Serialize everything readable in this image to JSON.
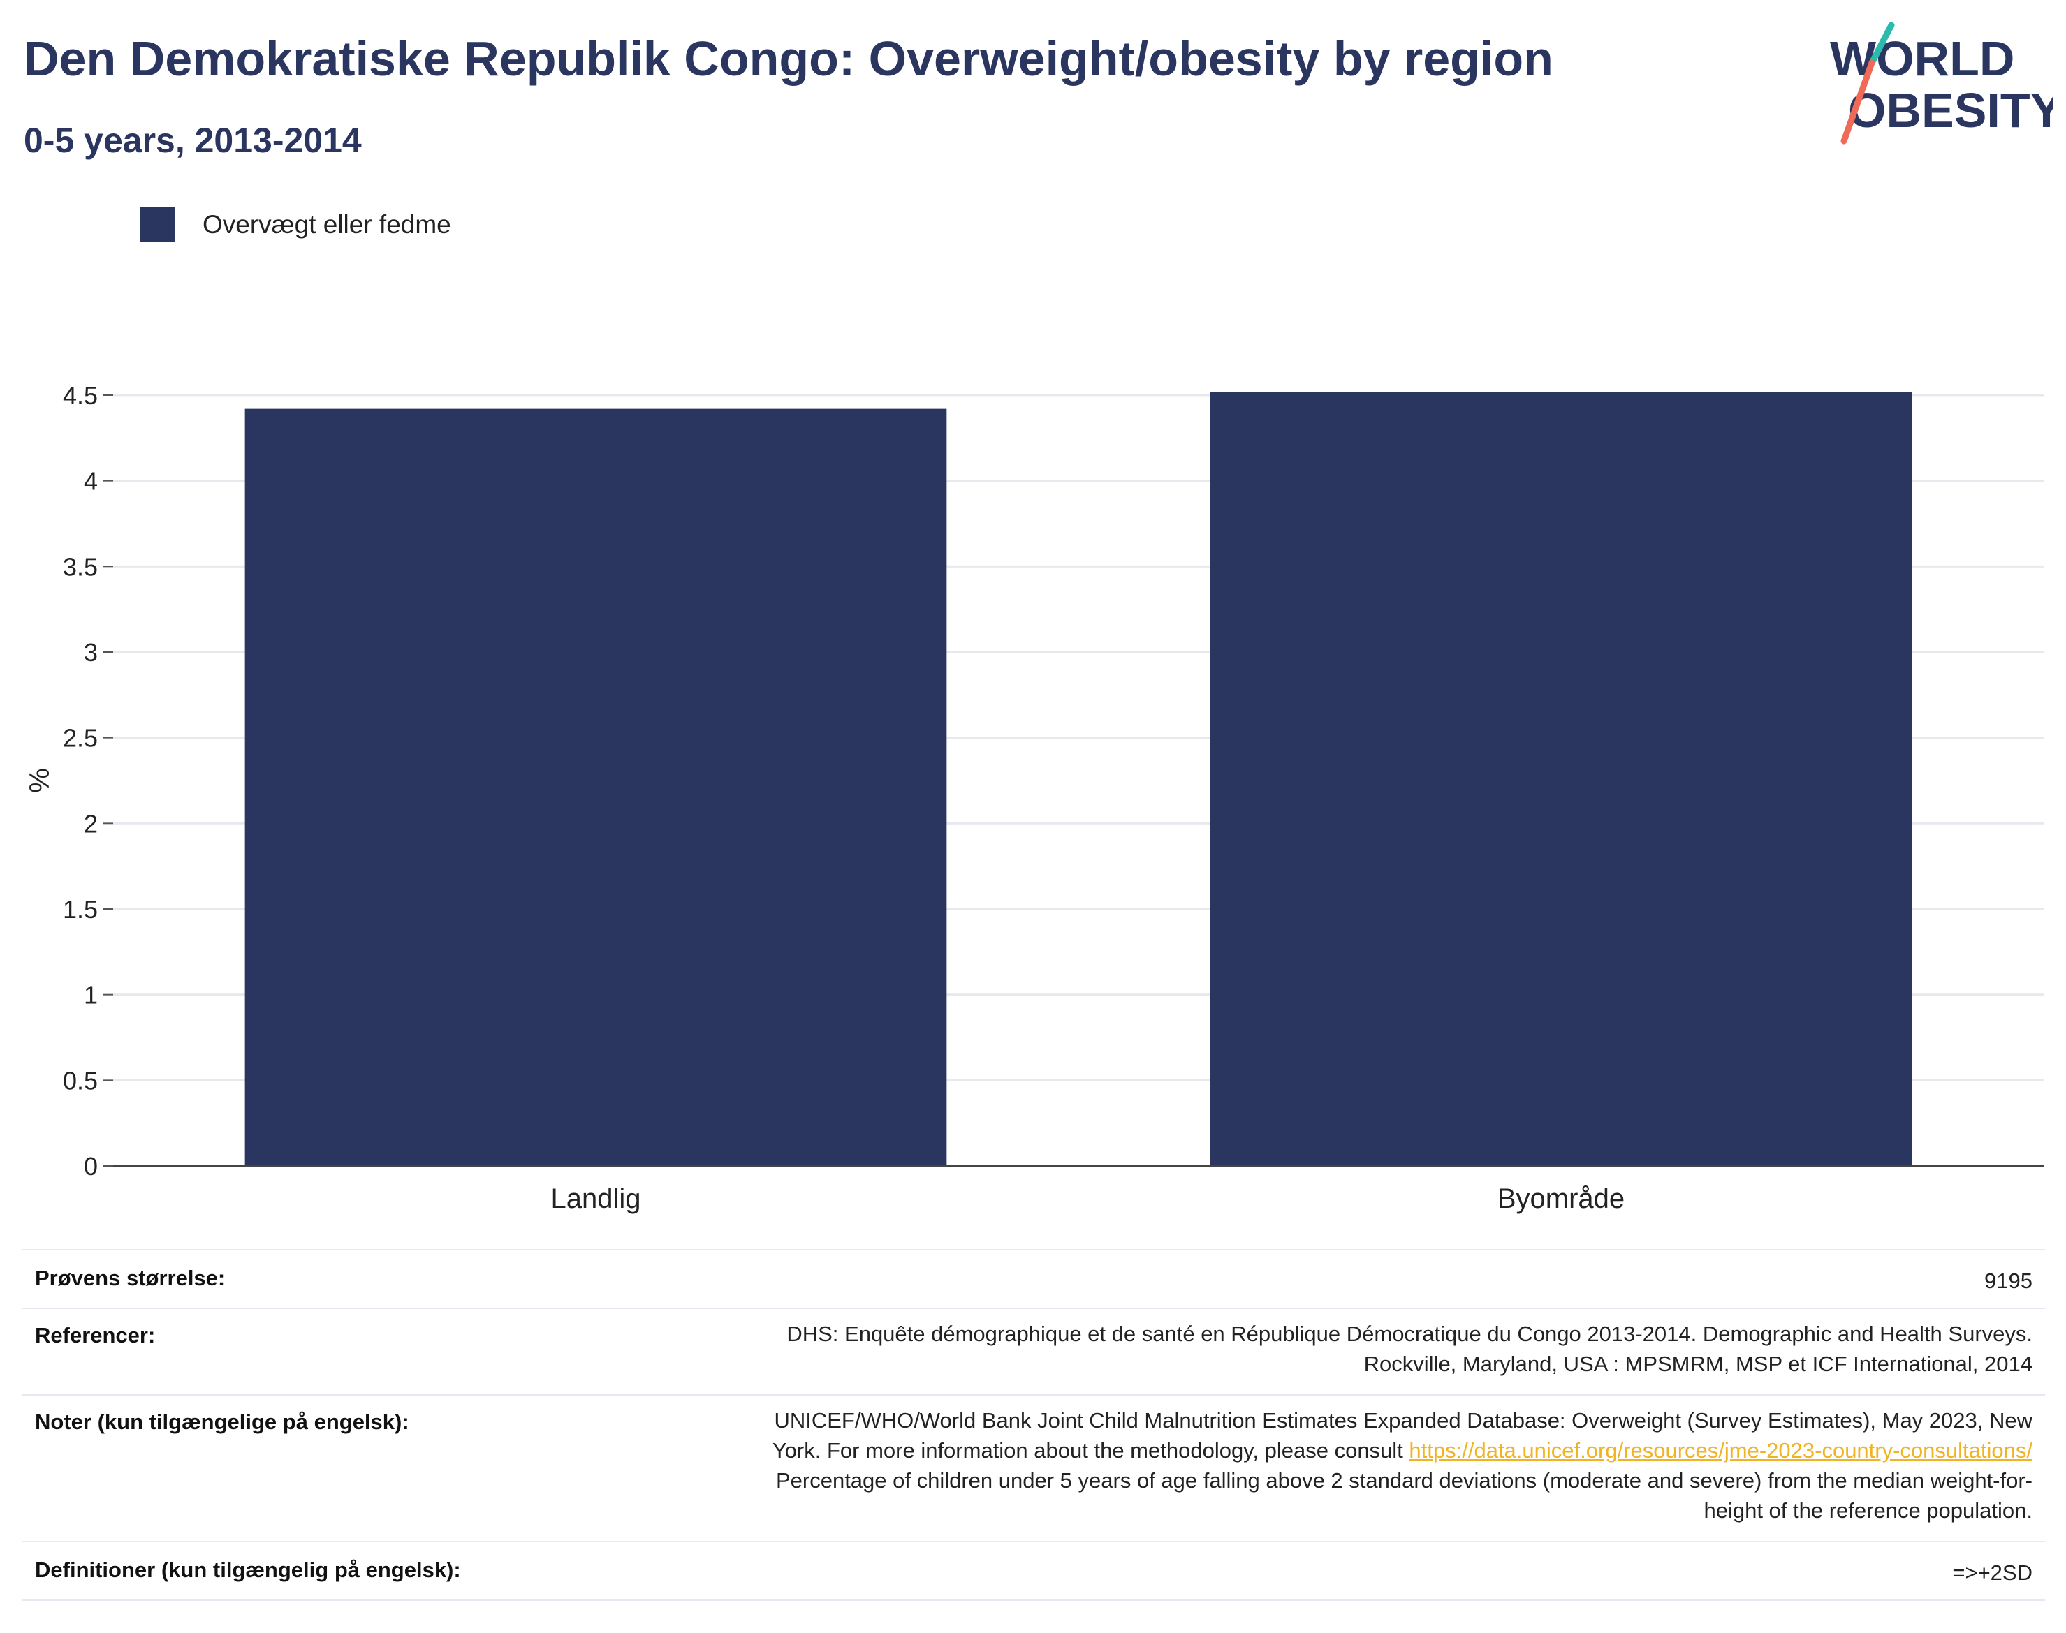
{
  "header": {
    "title": "Den Demokratiske Republik Congo: Overweight/obesity by region",
    "subtitle": "0-5 years, 2013-2014"
  },
  "logo": {
    "line1": "WORLD",
    "line2": "OBESITY"
  },
  "colors": {
    "bar": "#2a365f",
    "title": "#2a365f",
    "grid": "#e8e8ee",
    "link": "#f0b323",
    "logo_teal": "#2bbbad",
    "logo_coral": "#ef6b57"
  },
  "chart_data": {
    "type": "bar",
    "categories": [
      "Landlig",
      "Byområde"
    ],
    "series": [
      {
        "name": "Overvægt eller fedme",
        "values": [
          4.42,
          4.52
        ]
      }
    ],
    "ylabel": "%",
    "ylim": [
      0,
      4.5
    ],
    "yticks": [
      0,
      0.5,
      1,
      1.5,
      2,
      2.5,
      3,
      3.5,
      4,
      4.5
    ],
    "ytick_labels": [
      "0",
      "0.5",
      "1",
      "1.5",
      "2",
      "2.5",
      "3",
      "3.5",
      "4",
      "4.5"
    ],
    "grid": true,
    "legend": "top-left"
  },
  "info": {
    "sample_label": "Prøvens størrelse:",
    "sample_value": "9195",
    "refs_label": "Referencer:",
    "refs_line1": "DHS: Enquête démographique et de santé en République Démocratique du Congo 2013-2014. Demographic and Health Surveys.",
    "refs_line2": "Rockville, Maryland, USA : MPSMRM, MSP et ICF International, 2014",
    "notes_label": "Noter (kun tilgængelige på engelsk):",
    "notes_line1": "UNICEF/WHO/World Bank Joint Child Malnutrition Estimates Expanded Database: Overweight (Survey Estimates), May 2023, New",
    "notes_line2_pre": "York. For more information about the methodology, please consult",
    "notes_link": "https://data.unicef.org/resources/jme-2023-country-consultations/",
    "notes_line3": "Percentage of children under 5 years of age falling above 2 standard deviations (moderate and severe) from the median weight-for-",
    "notes_line4": "height of the reference population.",
    "defs_label": "Definitioner (kun tilgængelig på engelsk):",
    "defs_value": "=>+2SD"
  }
}
